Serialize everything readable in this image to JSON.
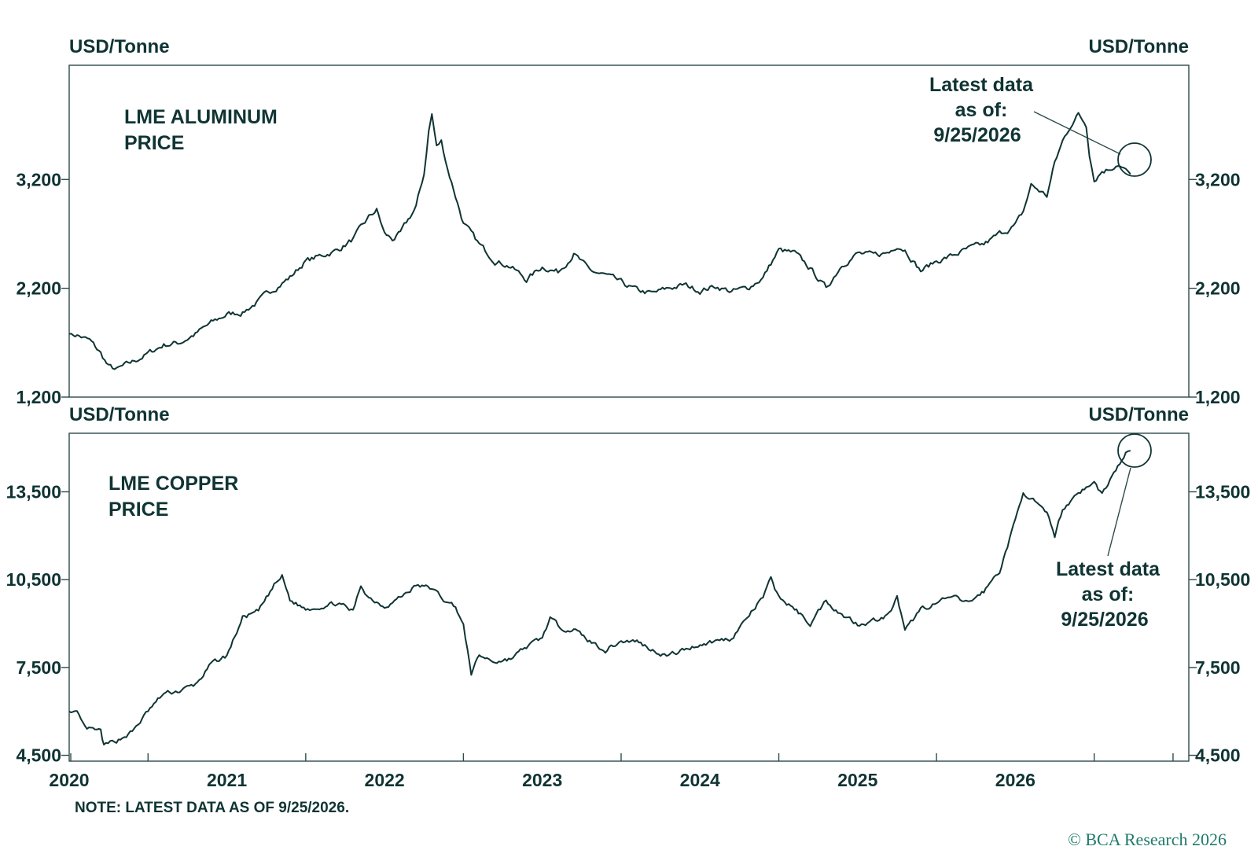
{
  "note": "NOTE: LATEST DATA AS OF 9/25/2026.",
  "copyright": "© BCA Research 2026",
  "x_axis": {
    "years": [
      "2020",
      "2021",
      "2022",
      "2023",
      "2024",
      "2025",
      "2026"
    ]
  },
  "chart_data": [
    {
      "type": "line",
      "title": "LME ALUMINUM PRICE",
      "title_lines": [
        "LME ALUMINUM",
        "PRICE"
      ],
      "ylabel_left": "USD/Tonne",
      "ylabel_right": "USD/Tonne",
      "ylim": [
        1200,
        4250
      ],
      "yticks": [
        1200,
        2200,
        3200
      ],
      "ytick_labels": [
        "1,200",
        "2,200",
        "3,200"
      ],
      "xlim": [
        2019.5,
        2026.6
      ],
      "grid": false,
      "annotation_lines": [
        "Latest data",
        "as of:",
        "9/25/2026"
      ],
      "series": [
        {
          "x": [
            2019.5,
            2019.55,
            2019.63,
            2019.7,
            2019.75,
            2019.8,
            2019.9,
            2020.0,
            2020.1,
            2020.2,
            2020.3,
            2020.4,
            2020.5,
            2020.6,
            2020.7,
            2020.8,
            2020.9,
            2021.0,
            2021.1,
            2021.2,
            2021.3,
            2021.4,
            2021.45,
            2021.5,
            2021.55,
            2021.6,
            2021.7,
            2021.75,
            2021.78,
            2021.8,
            2021.83,
            2021.86,
            2021.9,
            2021.95,
            2022.0,
            2022.1,
            2022.2,
            2022.3,
            2022.4,
            2022.5,
            2022.6,
            2022.7,
            2022.8,
            2022.9,
            2023.0,
            2023.1,
            2023.2,
            2023.3,
            2023.4,
            2023.5,
            2023.6,
            2023.7,
            2023.8,
            2023.9,
            2024.0,
            2024.1,
            2024.2,
            2024.3,
            2024.4,
            2024.5,
            2024.6,
            2024.7,
            2024.75,
            2024.8,
            2024.9,
            2025.0,
            2025.1,
            2025.2,
            2025.3,
            2025.4,
            2025.5,
            2025.55,
            2025.6,
            2025.7,
            2025.75,
            2025.8,
            2025.85,
            2025.9,
            2025.95,
            2025.97,
            2026.0,
            2026.05,
            2026.1,
            2026.15,
            2026.2,
            2026.23
          ],
          "values": [
            1780,
            1770,
            1720,
            1600,
            1480,
            1450,
            1520,
            1600,
            1680,
            1700,
            1780,
            1880,
            1960,
            1980,
            2080,
            2200,
            2300,
            2450,
            2500,
            2550,
            2650,
            2850,
            2920,
            2700,
            2650,
            2700,
            2950,
            3250,
            3650,
            3800,
            3500,
            3550,
            3300,
            3050,
            2800,
            2600,
            2460,
            2400,
            2280,
            2400,
            2350,
            2520,
            2360,
            2320,
            2250,
            2180,
            2150,
            2200,
            2230,
            2180,
            2220,
            2170,
            2200,
            2300,
            2550,
            2520,
            2380,
            2200,
            2420,
            2520,
            2500,
            2530,
            2600,
            2560,
            2360,
            2450,
            2500,
            2560,
            2600,
            2700,
            2780,
            2900,
            3150,
            3050,
            3350,
            3550,
            3700,
            3800,
            3700,
            3450,
            3200,
            3280,
            3300,
            3350,
            3280,
            3250
          ]
        }
      ]
    },
    {
      "type": "line",
      "title": "LME COPPER PRICE",
      "title_lines": [
        "LME COPPER",
        "PRICE"
      ],
      "ylabel_left": "USD/Tonne",
      "ylabel_right": "USD/Tonne",
      "ylim": [
        4300,
        15500
      ],
      "yticks": [
        4500,
        7500,
        10500,
        13500
      ],
      "ytick_labels": [
        "4,500",
        "7,500",
        "10,500",
        "13,500"
      ],
      "xlim": [
        2019.5,
        2026.6
      ],
      "grid": false,
      "annotation_lines": [
        "Latest data",
        "as of:",
        "9/25/2026"
      ],
      "series": [
        {
          "x": [
            2019.5,
            2019.55,
            2019.6,
            2019.7,
            2019.72,
            2019.8,
            2019.9,
            2020.0,
            2020.1,
            2020.2,
            2020.3,
            2020.4,
            2020.5,
            2020.6,
            2020.7,
            2020.8,
            2020.85,
            2020.9,
            2021.0,
            2021.1,
            2021.2,
            2021.3,
            2021.35,
            2021.4,
            2021.5,
            2021.6,
            2021.7,
            2021.8,
            2021.9,
            2021.95,
            2022.0,
            2022.05,
            2022.1,
            2022.2,
            2022.3,
            2022.4,
            2022.5,
            2022.55,
            2022.6,
            2022.7,
            2022.8,
            2022.9,
            2023.0,
            2023.1,
            2023.2,
            2023.3,
            2023.4,
            2023.5,
            2023.6,
            2023.7,
            2023.8,
            2023.9,
            2023.95,
            2024.0,
            2024.1,
            2024.2,
            2024.3,
            2024.4,
            2024.5,
            2024.6,
            2024.7,
            2024.75,
            2024.8,
            2024.9,
            2025.0,
            2025.1,
            2025.2,
            2025.3,
            2025.4,
            2025.5,
            2025.55,
            2025.6,
            2025.7,
            2025.75,
            2025.8,
            2025.9,
            2026.0,
            2026.05,
            2026.1,
            2026.2,
            2026.23
          ],
          "values": [
            6000,
            5900,
            5400,
            5300,
            4800,
            5000,
            5300,
            6000,
            6600,
            6700,
            6900,
            7600,
            7900,
            9200,
            9400,
            10300,
            10600,
            9800,
            9500,
            9600,
            9700,
            9400,
            10300,
            9900,
            9600,
            9900,
            10300,
            10200,
            9700,
            9600,
            8900,
            7300,
            7900,
            7700,
            7800,
            8200,
            8500,
            9200,
            8900,
            8800,
            8400,
            8100,
            8400,
            8400,
            8100,
            7900,
            8100,
            8300,
            8400,
            8500,
            9200,
            9900,
            10500,
            9900,
            9500,
            9000,
            9800,
            9300,
            9000,
            9100,
            9300,
            9900,
            8700,
            9500,
            9700,
            9900,
            9700,
            10100,
            10800,
            12500,
            13500,
            13300,
            12700,
            12000,
            12900,
            13500,
            13800,
            13400,
            13900,
            14800,
            14900
          ]
        }
      ]
    }
  ]
}
